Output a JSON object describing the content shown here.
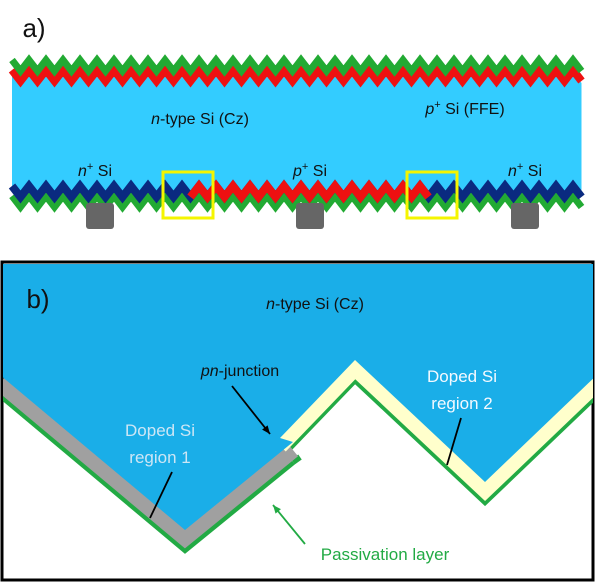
{
  "panel_a": {
    "label": "a)",
    "bulk": {
      "italic": "n",
      "text": "-type Si (Cz)"
    },
    "ffe": {
      "prefix": "p",
      "sup": "+",
      "text": " Si (FFE)"
    },
    "regions": [
      {
        "prefix": "n",
        "sup": "+",
        "text": " Si"
      },
      {
        "prefix": "p",
        "sup": "+",
        "text": " Si"
      },
      {
        "prefix": "n",
        "sup": "+",
        "text": " Si"
      }
    ]
  },
  "panel_b": {
    "label": "b)",
    "bulk": {
      "italic": "n",
      "text": "-type Si (Cz)"
    },
    "junction": {
      "italic": "pn",
      "text": "-junction"
    },
    "region_1": [
      "Doped Si",
      "region 1"
    ],
    "region_2": [
      "Doped Si",
      "region 2"
    ],
    "passivation": "Passivation layer"
  }
}
